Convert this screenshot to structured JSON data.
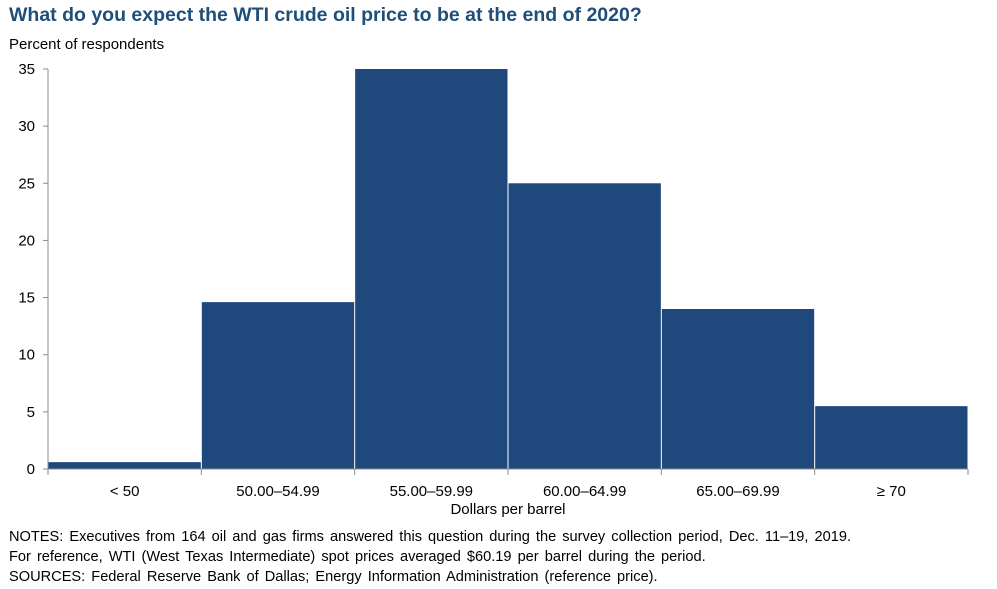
{
  "chart_data": {
    "type": "bar",
    "title": "What do you expect the WTI crude oil price to be at the end of 2020?",
    "ylabel": "Percent of respondents",
    "xlabel": "Dollars per barrel",
    "categories": [
      "< 50",
      "50.00–54.99",
      "55.00–59.99",
      "60.00–64.99",
      "65.00–69.99",
      "≥ 70"
    ],
    "values": [
      0.6,
      14.6,
      35.0,
      25.0,
      14.0,
      5.5
    ],
    "ylim": [
      0,
      35
    ],
    "yticks": [
      0,
      5,
      10,
      15,
      20,
      25,
      30,
      35
    ],
    "grid": false,
    "bar_color": "#1f497d"
  },
  "notes": [
    "NOTES: Executives from 164 oil and gas firms answered this question during the survey collection period, Dec. 11–19, 2019.",
    "For reference, WTI (West Texas Intermediate) spot prices averaged $60.19 per barrel during the period.",
    "SOURCES: Federal Reserve Bank of Dallas; Energy Information Administration (reference price)."
  ]
}
